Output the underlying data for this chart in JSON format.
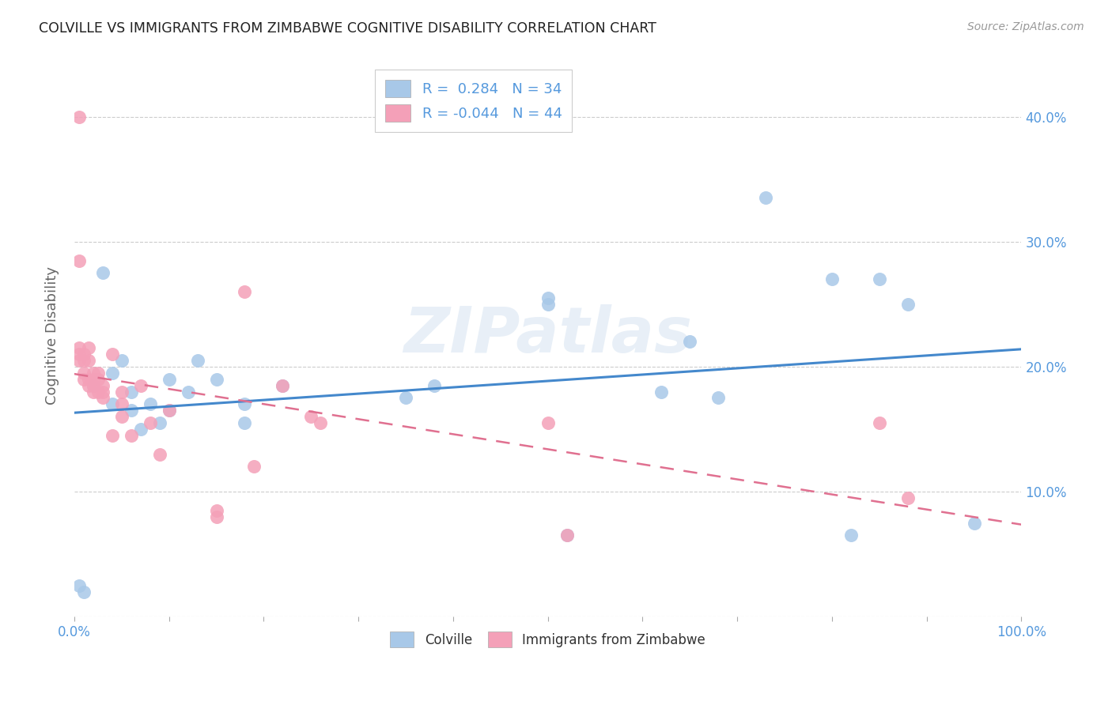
{
  "title": "COLVILLE VS IMMIGRANTS FROM ZIMBABWE COGNITIVE DISABILITY CORRELATION CHART",
  "source": "Source: ZipAtlas.com",
  "ylabel_label": "Cognitive Disability",
  "xlim": [
    0,
    1.0
  ],
  "ylim": [
    0,
    0.45
  ],
  "xticks": [
    0.0,
    0.1,
    0.2,
    0.3,
    0.4,
    0.5,
    0.6,
    0.7,
    0.8,
    0.9,
    1.0
  ],
  "yticks": [
    0.0,
    0.1,
    0.2,
    0.3,
    0.4
  ],
  "colville_r": 0.284,
  "colville_n": 34,
  "zimbabwe_r": -0.044,
  "zimbabwe_n": 44,
  "colville_color": "#a8c8e8",
  "zimbabwe_color": "#f4a0b8",
  "colville_line_color": "#4488cc",
  "zimbabwe_line_color": "#e07090",
  "colville_x": [
    0.005,
    0.01,
    0.02,
    0.03,
    0.04,
    0.04,
    0.05,
    0.06,
    0.06,
    0.07,
    0.08,
    0.09,
    0.1,
    0.1,
    0.12,
    0.13,
    0.15,
    0.18,
    0.18,
    0.22,
    0.35,
    0.38,
    0.5,
    0.5,
    0.52,
    0.62,
    0.65,
    0.68,
    0.73,
    0.8,
    0.82,
    0.85,
    0.88,
    0.95
  ],
  "colville_y": [
    0.025,
    0.02,
    0.185,
    0.275,
    0.195,
    0.17,
    0.205,
    0.18,
    0.165,
    0.15,
    0.17,
    0.155,
    0.19,
    0.165,
    0.18,
    0.205,
    0.19,
    0.17,
    0.155,
    0.185,
    0.175,
    0.185,
    0.25,
    0.255,
    0.065,
    0.18,
    0.22,
    0.175,
    0.335,
    0.27,
    0.065,
    0.27,
    0.25,
    0.075
  ],
  "zimbabwe_x": [
    0.005,
    0.005,
    0.005,
    0.005,
    0.005,
    0.01,
    0.01,
    0.01,
    0.01,
    0.015,
    0.015,
    0.015,
    0.015,
    0.02,
    0.02,
    0.02,
    0.02,
    0.025,
    0.025,
    0.025,
    0.03,
    0.03,
    0.03,
    0.04,
    0.04,
    0.05,
    0.05,
    0.05,
    0.06,
    0.07,
    0.08,
    0.09,
    0.1,
    0.15,
    0.15,
    0.18,
    0.19,
    0.22,
    0.25,
    0.26,
    0.5,
    0.52,
    0.85,
    0.88
  ],
  "zimbabwe_y": [
    0.4,
    0.285,
    0.215,
    0.21,
    0.205,
    0.21,
    0.205,
    0.195,
    0.19,
    0.215,
    0.205,
    0.19,
    0.185,
    0.195,
    0.19,
    0.185,
    0.18,
    0.195,
    0.19,
    0.18,
    0.185,
    0.18,
    0.175,
    0.21,
    0.145,
    0.18,
    0.17,
    0.16,
    0.145,
    0.185,
    0.155,
    0.13,
    0.165,
    0.085,
    0.08,
    0.26,
    0.12,
    0.185,
    0.16,
    0.155,
    0.155,
    0.065,
    0.155,
    0.095
  ],
  "watermark": "ZIPatlas",
  "background_color": "#ffffff",
  "grid_color": "#cccccc",
  "tick_color": "#5599dd",
  "label_color": "#5599dd"
}
